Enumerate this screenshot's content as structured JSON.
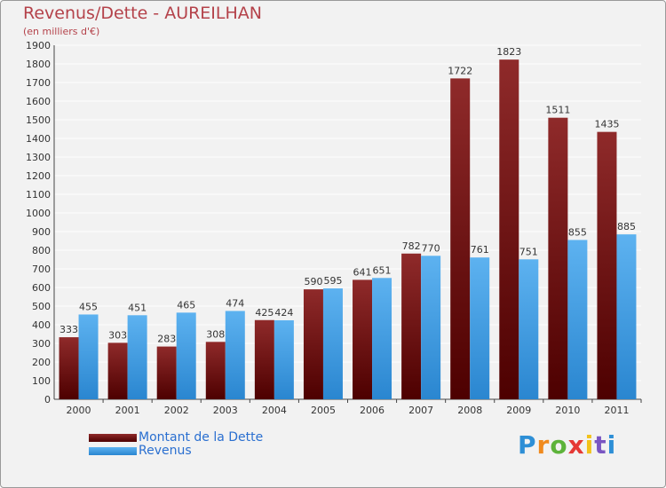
{
  "chart_data": {
    "type": "bar",
    "title": "Revenus/Dette - AUREILHAN",
    "subtitle": "(en milliers d'€)",
    "categories": [
      "2000",
      "2001",
      "2002",
      "2003",
      "2004",
      "2005",
      "2006",
      "2007",
      "2008",
      "2009",
      "2010",
      "2011"
    ],
    "series": [
      {
        "name": "Montant de la Dette",
        "color": "#7a1414",
        "values": [
          333,
          303,
          283,
          308,
          425,
          590,
          641,
          782,
          1722,
          1823,
          1511,
          1435
        ]
      },
      {
        "name": "Revenus",
        "color": "#3f9fe6",
        "values": [
          455,
          451,
          465,
          474,
          424,
          595,
          651,
          770,
          761,
          751,
          855,
          885
        ]
      }
    ],
    "ylim": [
      0,
      1900
    ],
    "ytick_step": 100,
    "grid": true,
    "legend": "bottom-left"
  },
  "logo": {
    "letters": [
      "P",
      "r",
      "o",
      "x",
      "i",
      "t",
      "i"
    ],
    "colors": [
      "#2e8fd6",
      "#f08a1e",
      "#5db33a",
      "#e53935",
      "#f2c21b",
      "#7a56c2",
      "#2e8fd6"
    ]
  }
}
